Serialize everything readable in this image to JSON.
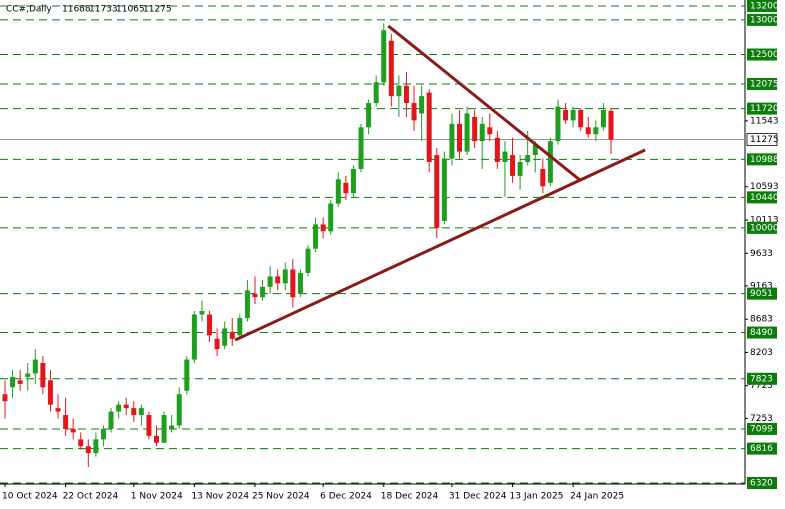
{
  "chart_data": {
    "type": "candlestick",
    "title": "CC#,Daily",
    "categories": [
      "10 Oct 2024",
      null,
      null,
      null,
      null,
      null,
      null,
      null,
      "22 Oct 2024",
      null,
      null,
      null,
      null,
      null,
      null,
      null,
      null,
      "1 Nov 2024",
      null,
      null,
      null,
      null,
      null,
      null,
      null,
      "13 Nov 2024",
      null,
      null,
      null,
      null,
      null,
      null,
      null,
      "25 Nov 2024",
      null,
      null,
      null,
      null,
      null,
      null,
      null,
      null,
      "6 Dec 2024",
      null,
      null,
      null,
      null,
      null,
      null,
      null,
      "18 Dec 2024",
      null,
      null,
      null,
      null,
      null,
      null,
      null,
      null,
      "31 Dec 2024",
      null,
      null,
      null,
      null,
      null,
      null,
      null,
      "13 Jan 2025",
      null,
      null,
      null,
      null,
      null,
      null,
      null,
      "24 Jan 2025",
      null,
      null,
      null,
      null,
      null
    ],
    "open": [
      7600,
      7700,
      7800,
      7850,
      7900,
      8050,
      7800,
      7400,
      7300,
      7100,
      6950,
      6850,
      6750,
      6950,
      7100,
      7350,
      7450,
      7400,
      7300,
      7300,
      7000,
      6900,
      7100,
      7150,
      7650,
      8100,
      8750,
      8750,
      8400,
      8300,
      8500,
      8450,
      8700,
      9050,
      9000,
      9150,
      9300,
      9200,
      9400,
      9050,
      9350,
      9700,
      10050,
      9950,
      10350,
      10650,
      10500,
      10850,
      11450,
      11800,
      12100,
      12700,
      11900,
      12050,
      11800,
      11650,
      11950,
      11050,
      10100,
      11000,
      11500,
      11100,
      11600,
      11250,
      11450,
      11300,
      10950,
      11050,
      10750,
      10950,
      11050,
      10850,
      10650,
      11250,
      11700,
      11550,
      11700,
      11450,
      11350,
      11450,
      11688
    ],
    "high": [
      7800,
      7950,
      7950,
      8050,
      8250,
      8150,
      7950,
      7600,
      7550,
      7250,
      7050,
      6950,
      7050,
      7150,
      7400,
      7500,
      7550,
      7500,
      7450,
      7350,
      7150,
      7350,
      7300,
      7700,
      8150,
      8800,
      8950,
      8800,
      8550,
      8650,
      8700,
      8750,
      9250,
      9300,
      9250,
      9450,
      9400,
      9500,
      9550,
      9400,
      9750,
      10150,
      10150,
      10400,
      10800,
      10750,
      10900,
      11500,
      11850,
      12200,
      12950,
      12800,
      12200,
      12250,
      12050,
      12050,
      12000,
      11150,
      11100,
      11650,
      11700,
      11750,
      11700,
      11600,
      11650,
      11400,
      11250,
      11300,
      11050,
      11400,
      11250,
      11000,
      11300,
      11850,
      11800,
      11750,
      11720,
      11600,
      11550,
      11800,
      11733
    ],
    "low": [
      7250,
      7550,
      7650,
      7650,
      7750,
      7600,
      7350,
      7250,
      7000,
      6950,
      6800,
      6550,
      6700,
      6850,
      7050,
      7250,
      7300,
      7200,
      7150,
      6950,
      6850,
      6900,
      7050,
      7100,
      7600,
      8050,
      8650,
      8350,
      8150,
      8250,
      8300,
      8400,
      8650,
      8900,
      8950,
      9050,
      9100,
      9100,
      8850,
      9000,
      9300,
      9650,
      9850,
      9900,
      10300,
      10400,
      10450,
      10800,
      11350,
      11750,
      12050,
      11750,
      11600,
      11600,
      11400,
      11250,
      10800,
      9850,
      10050,
      10900,
      11000,
      11050,
      11150,
      10850,
      11250,
      10850,
      10450,
      10650,
      10550,
      10900,
      10800,
      10500,
      10600,
      11200,
      11500,
      11450,
      11400,
      11300,
      11250,
      11400,
      11065
    ],
    "close": [
      7500,
      7850,
      7750,
      7900,
      8100,
      7700,
      7450,
      7350,
      7100,
      7050,
      6850,
      6750,
      6950,
      7100,
      7350,
      7450,
      7400,
      7300,
      7400,
      7000,
      6900,
      7300,
      7150,
      7600,
      8100,
      8750,
      8800,
      8450,
      8250,
      8550,
      8400,
      8700,
      9100,
      9000,
      9150,
      9300,
      9200,
      9400,
      9000,
      9350,
      9700,
      10050,
      9950,
      10350,
      10700,
      10500,
      10850,
      11450,
      11800,
      12100,
      12850,
      11900,
      12050,
      11800,
      11550,
      11900,
      10950,
      10000,
      11000,
      11500,
      11100,
      11650,
      11250,
      11500,
      11350,
      10950,
      11100,
      10750,
      10950,
      11050,
      11200,
      10600,
      11250,
      11750,
      11550,
      11700,
      11450,
      11350,
      11450,
      11700,
      11275
    ],
    "up_color": "#1f9e1f",
    "down_color": "#e5161b",
    "ylim": [
      6320,
      13200
    ],
    "yticks": [
      11543,
      10593,
      10113,
      9633,
      9163,
      8683,
      8203,
      7723,
      7253
    ],
    "levels": [
      13200,
      13000,
      12500,
      12075,
      11720,
      10988,
      10440,
      10000,
      9051,
      8490,
      7823,
      7099,
      6816,
      6320
    ],
    "level_color": "#0a7d0a",
    "trendline_color": "#8b1a1a",
    "trendlines": [
      {
        "x": [
          30.4,
          84.5
        ],
        "y": [
          8382,
          11123
        ]
      },
      {
        "x": [
          50.6,
          75.9
        ],
        "y": [
          12912,
          10690
        ]
      }
    ]
  }
}
